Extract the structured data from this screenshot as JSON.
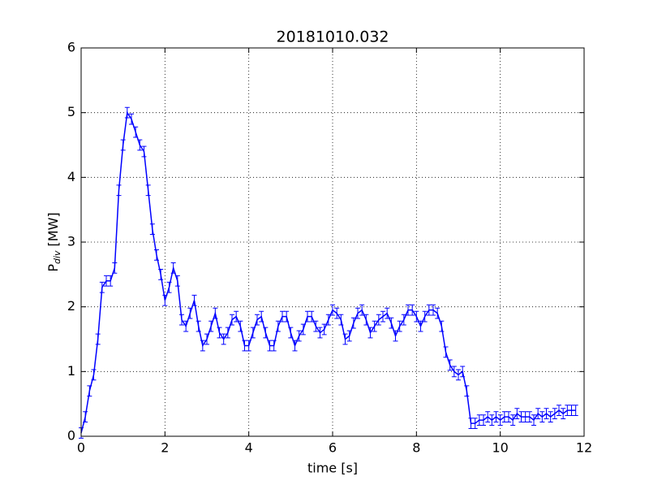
{
  "chart_data": {
    "type": "errorbar_line",
    "title": "20181010.032",
    "xlabel": "time [s]",
    "ylabel": {
      "main": "P",
      "sub": "div",
      "unit": "[MW]"
    },
    "xlim": [
      0,
      12
    ],
    "xticks": [
      0,
      2,
      4,
      6,
      8,
      10,
      12
    ],
    "ylim": [
      0,
      6
    ],
    "yticks": [
      0,
      1,
      2,
      3,
      4,
      5,
      6
    ],
    "grid": true,
    "yerr": 0.08,
    "x": [
      0,
      0.1,
      0.2,
      0.3,
      0.4,
      0.5,
      0.6,
      0.7,
      0.8,
      0.9,
      1.0,
      1.1,
      1.2,
      1.3,
      1.4,
      1.5,
      1.6,
      1.7,
      1.8,
      1.9,
      2.0,
      2.1,
      2.2,
      2.3,
      2.4,
      2.5,
      2.6,
      2.7,
      2.8,
      2.9,
      3.0,
      3.1,
      3.2,
      3.3,
      3.4,
      3.5,
      3.6,
      3.7,
      3.8,
      3.9,
      4.0,
      4.1,
      4.2,
      4.3,
      4.4,
      4.5,
      4.6,
      4.7,
      4.8,
      4.9,
      5.0,
      5.1,
      5.2,
      5.3,
      5.4,
      5.5,
      5.6,
      5.7,
      5.8,
      5.9,
      6.0,
      6.1,
      6.2,
      6.3,
      6.4,
      6.5,
      6.6,
      6.7,
      6.8,
      6.9,
      7.0,
      7.1,
      7.2,
      7.3,
      7.4,
      7.5,
      7.6,
      7.7,
      7.8,
      7.9,
      8.0,
      8.1,
      8.2,
      8.3,
      8.4,
      8.5,
      8.6,
      8.7,
      8.8,
      8.9,
      9.0,
      9.1,
      9.2,
      9.3,
      9.4,
      9.5,
      9.6,
      9.7,
      9.8,
      9.9,
      10.0,
      10.1,
      10.2,
      10.3,
      10.4,
      10.5,
      10.6,
      10.7,
      10.8,
      10.9,
      11.0,
      11.1,
      11.2,
      11.3,
      11.4,
      11.5,
      11.6,
      11.7,
      11.8
    ],
    "series": [
      {
        "color": "#0000ff",
        "values": [
          0.05,
          0.3,
          0.7,
          0.95,
          1.5,
          2.3,
          2.4,
          2.4,
          2.6,
          3.8,
          4.5,
          5.0,
          4.9,
          4.7,
          4.5,
          4.4,
          3.8,
          3.2,
          2.8,
          2.5,
          2.1,
          2.3,
          2.6,
          2.4,
          1.8,
          1.7,
          1.9,
          2.1,
          1.7,
          1.4,
          1.5,
          1.7,
          1.9,
          1.6,
          1.5,
          1.6,
          1.8,
          1.85,
          1.7,
          1.4,
          1.4,
          1.6,
          1.8,
          1.85,
          1.6,
          1.4,
          1.4,
          1.7,
          1.85,
          1.85,
          1.6,
          1.4,
          1.55,
          1.65,
          1.85,
          1.85,
          1.7,
          1.6,
          1.65,
          1.8,
          1.95,
          1.9,
          1.8,
          1.5,
          1.55,
          1.75,
          1.9,
          1.95,
          1.8,
          1.6,
          1.7,
          1.8,
          1.85,
          1.9,
          1.75,
          1.55,
          1.7,
          1.8,
          1.95,
          1.95,
          1.85,
          1.7,
          1.85,
          1.95,
          1.95,
          1.9,
          1.7,
          1.3,
          1.1,
          1.0,
          0.95,
          1.0,
          0.7,
          0.2,
          0.2,
          0.25,
          0.25,
          0.3,
          0.25,
          0.3,
          0.25,
          0.3,
          0.3,
          0.25,
          0.35,
          0.3,
          0.3,
          0.3,
          0.25,
          0.35,
          0.3,
          0.35,
          0.3,
          0.35,
          0.4,
          0.35,
          0.4,
          0.4,
          0.4
        ]
      }
    ]
  }
}
